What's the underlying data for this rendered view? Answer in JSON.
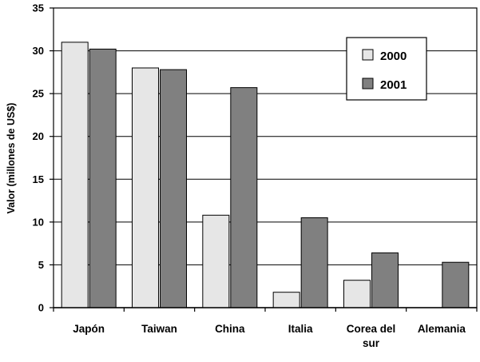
{
  "chart_data": {
    "type": "bar",
    "categories": [
      "Japón",
      "Taiwan",
      "China",
      "Italia",
      "Corea del sur",
      "Alemania"
    ],
    "category_lines": [
      [
        "Japón"
      ],
      [
        "Taiwan"
      ],
      [
        "China"
      ],
      [
        "Italia"
      ],
      [
        "Corea del",
        "sur"
      ],
      [
        "Alemania"
      ]
    ],
    "series": [
      {
        "name": "2000",
        "values": [
          31.0,
          28.0,
          10.8,
          1.8,
          3.2,
          0
        ],
        "color": "#e6e6e6"
      },
      {
        "name": "2001",
        "values": [
          30.2,
          27.8,
          25.7,
          10.5,
          6.4,
          5.3
        ],
        "color": "#808080"
      }
    ],
    "xlabel": "",
    "ylabel": "Valor (millones de US$)",
    "ylim": [
      0,
      35
    ],
    "yticks": [
      0,
      5,
      10,
      15,
      20,
      25,
      30,
      35
    ],
    "grid": true,
    "legend_position": "top-right"
  }
}
